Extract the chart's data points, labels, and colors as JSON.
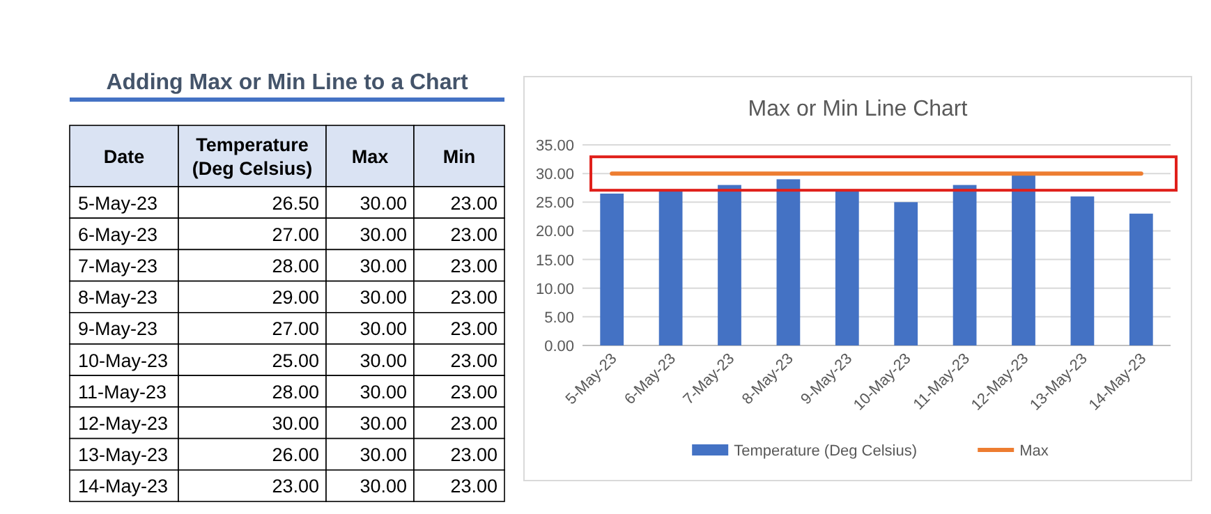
{
  "chart_data": [
    {
      "type": "other",
      "title": "Adding Max or Min Line to a Chart",
      "annotations": [
        "Date",
        "Temperature (Deg Celsius)",
        "Max",
        "Min",
        "5-May-23",
        "26.50",
        "30.00",
        "23.00",
        "6-May-23",
        "27.00",
        "30.00",
        "23.00",
        "7-May-23",
        "28.00",
        "30.00",
        "23.00",
        "8-May-23",
        "29.00",
        "30.00",
        "23.00",
        "9-May-23",
        "27.00",
        "30.00",
        "23.00",
        "10-May-23",
        "25.00",
        "30.00",
        "23.00",
        "11-May-23",
        "28.00",
        "30.00",
        "23.00",
        "12-May-23",
        "30.00",
        "30.00",
        "23.00",
        "13-May-23",
        "26.00",
        "30.00",
        "23.00",
        "14-May-23",
        "23.00",
        "30.00",
        "23.00"
      ]
    },
    {
      "type": "bar",
      "title": "Max or Min Line Chart",
      "categories": [
        "5-May-23",
        "6-May-23",
        "7-May-23",
        "8-May-23",
        "9-May-23",
        "10-May-23",
        "11-May-23",
        "12-May-23",
        "13-May-23",
        "14-May-23"
      ],
      "series": [
        {
          "name": "Temperature (Deg Celsius)",
          "color": "#4472c4",
          "values": [
            26.5,
            27,
            28,
            29,
            27,
            25,
            28,
            30,
            26,
            23
          ]
        },
        {
          "name": "Max",
          "type": "line",
          "color": "#ed7d31",
          "values": [
            30,
            30,
            30,
            30,
            30,
            30,
            30,
            30,
            30,
            30
          ]
        }
      ],
      "ylim": [
        0,
        35
      ],
      "yticks": [
        {
          "value": 0,
          "label": "0.00"
        },
        {
          "value": 5,
          "label": "5.00"
        },
        {
          "value": 10,
          "label": "10.00"
        },
        {
          "value": 15,
          "label": "15.00"
        },
        {
          "value": 20,
          "label": "20.00"
        },
        {
          "value": 25,
          "label": "25.00"
        },
        {
          "value": 30,
          "label": "30.00"
        },
        {
          "value": 35,
          "label": "35.00"
        }
      ],
      "grid": "y",
      "legend": "bottom",
      "marker": "none"
    }
  ]
}
